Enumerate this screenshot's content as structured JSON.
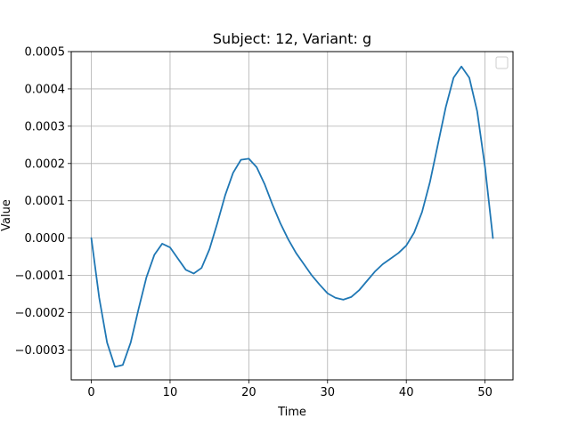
{
  "chart_data": {
    "type": "line",
    "title": "Subject: 12, Variant: g",
    "xlabel": "Time",
    "ylabel": "Value",
    "xlim": [
      -2.55,
      53.55
    ],
    "ylim": [
      -0.00038,
      0.0005
    ],
    "x_ticks": [
      0,
      10,
      20,
      30,
      40,
      50
    ],
    "y_ticks": [
      -0.0003,
      -0.0002,
      -0.0001,
      0.0,
      0.0001,
      0.0002,
      0.0003,
      0.0004,
      0.0005
    ],
    "x_tick_labels": [
      "0",
      "10",
      "20",
      "30",
      "40",
      "50"
    ],
    "y_tick_labels": [
      "−0.0003",
      "−0.0002",
      "−0.0001",
      "0.0000",
      "0.0001",
      "0.0002",
      "0.0003",
      "0.0004",
      "0.0005"
    ],
    "grid": true,
    "legend": "top-right",
    "series": [
      {
        "color": "#1f77b4",
        "x": [
          0,
          1,
          2,
          3,
          4,
          5,
          6,
          7,
          8,
          9,
          10,
          11,
          12,
          13,
          14,
          15,
          16,
          17,
          18,
          19,
          20,
          21,
          22,
          23,
          24,
          25,
          26,
          27,
          28,
          29,
          30,
          31,
          32,
          33,
          34,
          35,
          36,
          37,
          38,
          39,
          40,
          41,
          42,
          43,
          44,
          45,
          46,
          47,
          48,
          49,
          50,
          51
        ],
        "y": [
          0.0,
          -0.00016,
          -0.00028,
          -0.000345,
          -0.00034,
          -0.00028,
          -0.00019,
          -0.000105,
          -4.5e-05,
          -1.5e-05,
          -2.5e-05,
          -5.5e-05,
          -8.5e-05,
          -9.5e-05,
          -8e-05,
          -3e-05,
          4e-05,
          0.000115,
          0.000175,
          0.00021,
          0.000213,
          0.00019,
          0.000145,
          9e-05,
          4e-05,
          -3e-06,
          -4e-05,
          -7e-05,
          -0.0001,
          -0.000125,
          -0.000148,
          -0.00016,
          -0.000165,
          -0.000158,
          -0.00014,
          -0.000115,
          -9e-05,
          -7e-05,
          -5.5e-05,
          -4e-05,
          -2e-05,
          1.5e-05,
          7e-05,
          0.00015,
          0.00025,
          0.00035,
          0.00043,
          0.00046,
          0.00043,
          0.00034,
          0.00019,
          0.0
        ]
      }
    ]
  }
}
